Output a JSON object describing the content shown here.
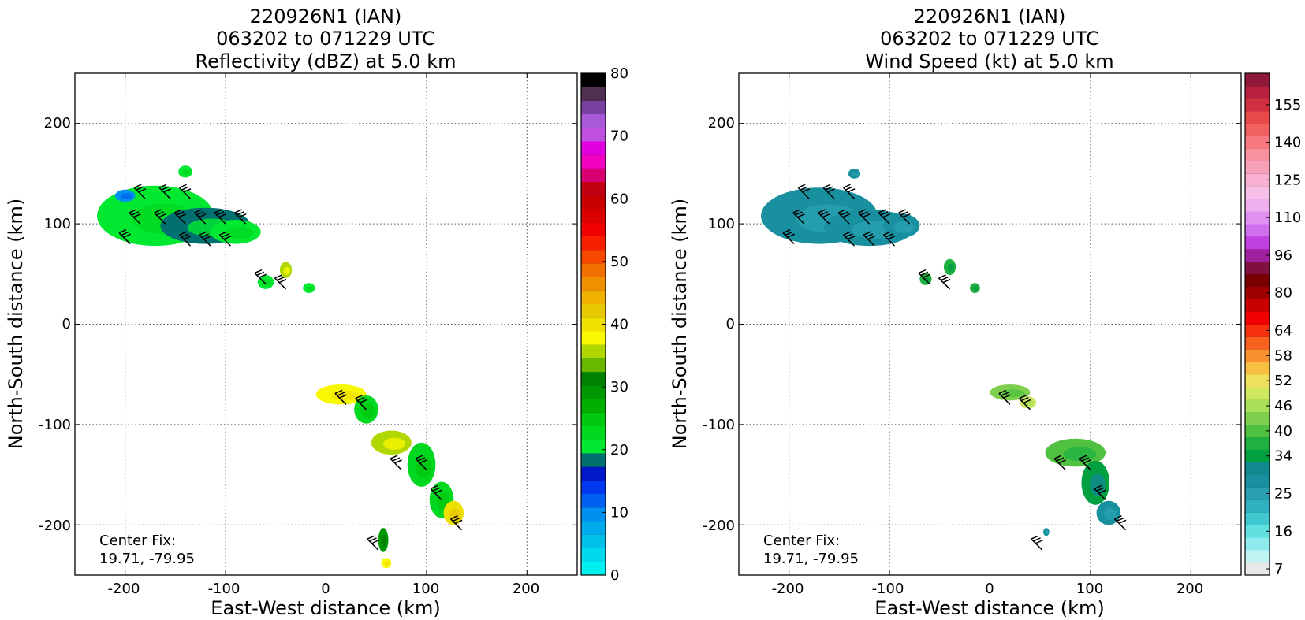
{
  "chart_data": [
    {
      "type": "heatmap",
      "title_lines": [
        "220926N1 (IAN)",
        "063202 to 071229 UTC",
        "Reflectivity (dBZ) at 5.0 km"
      ],
      "xlabel": "East-West distance (km)",
      "ylabel": "North-South distance (km)",
      "xlim": [
        -250,
        250
      ],
      "ylim": [
        -250,
        250
      ],
      "xticks": [
        -200,
        -100,
        0,
        100,
        200
      ],
      "yticks": [
        -200,
        -100,
        0,
        100,
        200
      ],
      "grid": true,
      "annotation": [
        "Center Fix:",
        "19.71, -79.95"
      ],
      "colorbar": {
        "min": 0,
        "max": 80,
        "tick_values": [
          0,
          10,
          20,
          30,
          40,
          50,
          60,
          70,
          80
        ],
        "tick_labels": [
          "0",
          "10",
          "20",
          "30",
          "40",
          "50",
          "60",
          "70",
          "80"
        ],
        "colors": [
          "#00f0f0",
          "#00d8ec",
          "#00c0e8",
          "#00a8ec",
          "#0090f0",
          "#0060f0",
          "#0038f0",
          "#0018c8",
          "#007070",
          "#00e830",
          "#00d820",
          "#00c810",
          "#00b000",
          "#009800",
          "#008000",
          "#68b800",
          "#b0d800",
          "#f8f800",
          "#f0e000",
          "#e8c800",
          "#f0b000",
          "#f09000",
          "#f07000",
          "#f84800",
          "#f82000",
          "#f00000",
          "#d80000",
          "#c80000",
          "#c00010",
          "#d80070",
          "#f000c0",
          "#e000e0",
          "#c050e0",
          "#a858d8",
          "#7840a0",
          "#503050",
          "#000000"
        ]
      },
      "regions": [
        {
          "x": -170,
          "y": 108,
          "rx": 58,
          "ry": 30,
          "value": 20
        },
        {
          "x": -120,
          "y": 98,
          "rx": 45,
          "ry": 18,
          "value": 19
        },
        {
          "x": -90,
          "y": 92,
          "rx": 25,
          "ry": 12,
          "value": 20
        },
        {
          "x": -200,
          "y": 128,
          "rx": 10,
          "ry": 6,
          "value": 10
        },
        {
          "x": -140,
          "y": 152,
          "rx": 7,
          "ry": 6,
          "value": 21
        },
        {
          "x": -60,
          "y": 42,
          "rx": 8,
          "ry": 7,
          "value": 20
        },
        {
          "x": -40,
          "y": 54,
          "rx": 6,
          "ry": 8,
          "value": 36
        },
        {
          "x": -17,
          "y": 36,
          "rx": 6,
          "ry": 5,
          "value": 20
        },
        {
          "x": 15,
          "y": -70,
          "rx": 25,
          "ry": 10,
          "value": 38
        },
        {
          "x": 40,
          "y": -85,
          "rx": 12,
          "ry": 14,
          "value": 22
        },
        {
          "x": 65,
          "y": -118,
          "rx": 20,
          "ry": 12,
          "value": 36
        },
        {
          "x": 95,
          "y": -140,
          "rx": 14,
          "ry": 22,
          "value": 22
        },
        {
          "x": 115,
          "y": -175,
          "rx": 12,
          "ry": 18,
          "value": 22
        },
        {
          "x": 127,
          "y": -188,
          "rx": 10,
          "ry": 12,
          "value": 40
        },
        {
          "x": 57,
          "y": -215,
          "rx": 5,
          "ry": 12,
          "value": 30
        },
        {
          "x": 60,
          "y": -238,
          "rx": 5,
          "ry": 5,
          "value": 37
        }
      ],
      "wind_barbs": [
        {
          "x": -180,
          "y": 125
        },
        {
          "x": -155,
          "y": 125
        },
        {
          "x": -135,
          "y": 125
        },
        {
          "x": -185,
          "y": 100
        },
        {
          "x": -160,
          "y": 100
        },
        {
          "x": -140,
          "y": 100
        },
        {
          "x": -120,
          "y": 100
        },
        {
          "x": -100,
          "y": 100
        },
        {
          "x": -80,
          "y": 100
        },
        {
          "x": -195,
          "y": 80
        },
        {
          "x": -135,
          "y": 78
        },
        {
          "x": -115,
          "y": 78
        },
        {
          "x": -95,
          "y": 78
        },
        {
          "x": -60,
          "y": 40
        },
        {
          "x": -40,
          "y": 35
        },
        {
          "x": 20,
          "y": -80
        },
        {
          "x": 40,
          "y": -85
        },
        {
          "x": 75,
          "y": -145
        },
        {
          "x": 100,
          "y": -145
        },
        {
          "x": 115,
          "y": -175
        },
        {
          "x": 135,
          "y": -205
        },
        {
          "x": 52,
          "y": -225
        }
      ]
    },
    {
      "type": "heatmap",
      "title_lines": [
        "220926N1 (IAN)",
        "063202 to 071229 UTC",
        "Wind Speed (kt) at 5.0 km"
      ],
      "xlabel": "East-West distance (km)",
      "ylabel": "North-South distance (km)",
      "xlim": [
        -250,
        250
      ],
      "ylim": [
        -250,
        250
      ],
      "xticks": [
        -200,
        -100,
        0,
        100,
        200
      ],
      "yticks": [
        -200,
        -100,
        0,
        100,
        200
      ],
      "grid": true,
      "annotation": [
        "Center Fix:",
        "19.71, -79.95"
      ],
      "colorbar": {
        "tick_labels": [
          "7",
          "16",
          "25",
          "34",
          "40",
          "46",
          "52",
          "58",
          "64",
          "80",
          "96",
          "110",
          "125",
          "140",
          "155"
        ],
        "tick_bins": [
          0,
          3,
          6,
          9,
          11,
          13,
          15,
          17,
          19,
          22,
          25,
          28,
          31,
          34,
          37
        ],
        "colors": [
          "#e8e8e8",
          "#c0f4f4",
          "#90ecec",
          "#60e0e0",
          "#40c8d0",
          "#30b0c0",
          "#28a0b0",
          "#1890a0",
          "#108890",
          "#00a040",
          "#20b040",
          "#50c040",
          "#80d050",
          "#a8e058",
          "#d0e860",
          "#f0e060",
          "#f8c040",
          "#f89030",
          "#f86020",
          "#f83010",
          "#f00000",
          "#c80000",
          "#a00000",
          "#780000",
          "#801040",
          "#a020a0",
          "#c040e0",
          "#d070f0",
          "#e090f0",
          "#f0b0f0",
          "#f8c0e8",
          "#f8b0d0",
          "#f8a0b8",
          "#f890a0",
          "#f87880",
          "#f06060",
          "#e84848",
          "#d03040",
          "#b82040",
          "#901838"
        ]
      },
      "regions": [
        {
          "x": -170,
          "y": 108,
          "rx": 58,
          "ry": 28,
          "value": 27
        },
        {
          "x": -120,
          "y": 96,
          "rx": 45,
          "ry": 18,
          "value": 27
        },
        {
          "x": -88,
          "y": 98,
          "rx": 18,
          "ry": 12,
          "value": 27
        },
        {
          "x": -135,
          "y": 150,
          "rx": 6,
          "ry": 5,
          "value": 27
        },
        {
          "x": -64,
          "y": 45,
          "rx": 6,
          "ry": 6,
          "value": 36
        },
        {
          "x": -40,
          "y": 57,
          "rx": 6,
          "ry": 8,
          "value": 36
        },
        {
          "x": -15,
          "y": 36,
          "rx": 5,
          "ry": 5,
          "value": 36
        },
        {
          "x": 20,
          "y": -68,
          "rx": 20,
          "ry": 8,
          "value": 44
        },
        {
          "x": 38,
          "y": -78,
          "rx": 8,
          "ry": 6,
          "value": 48
        },
        {
          "x": 85,
          "y": -128,
          "rx": 30,
          "ry": 14,
          "value": 41
        },
        {
          "x": 105,
          "y": -158,
          "rx": 14,
          "ry": 22,
          "value": 33
        },
        {
          "x": 118,
          "y": -188,
          "rx": 12,
          "ry": 12,
          "value": 27
        },
        {
          "x": 56,
          "y": -207,
          "rx": 3,
          "ry": 4,
          "value": 27
        }
      ],
      "wind_barbs": [
        {
          "x": -180,
          "y": 125
        },
        {
          "x": -155,
          "y": 125
        },
        {
          "x": -135,
          "y": 125
        },
        {
          "x": -185,
          "y": 100
        },
        {
          "x": -160,
          "y": 100
        },
        {
          "x": -140,
          "y": 100
        },
        {
          "x": -120,
          "y": 100
        },
        {
          "x": -100,
          "y": 100
        },
        {
          "x": -80,
          "y": 100
        },
        {
          "x": -195,
          "y": 80
        },
        {
          "x": -135,
          "y": 78
        },
        {
          "x": -115,
          "y": 78
        },
        {
          "x": -95,
          "y": 78
        },
        {
          "x": -60,
          "y": 40
        },
        {
          "x": -40,
          "y": 35
        },
        {
          "x": 20,
          "y": -80
        },
        {
          "x": 40,
          "y": -85
        },
        {
          "x": 75,
          "y": -145
        },
        {
          "x": 100,
          "y": -145
        },
        {
          "x": 115,
          "y": -175
        },
        {
          "x": 135,
          "y": -205
        },
        {
          "x": 52,
          "y": -225
        }
      ]
    }
  ]
}
